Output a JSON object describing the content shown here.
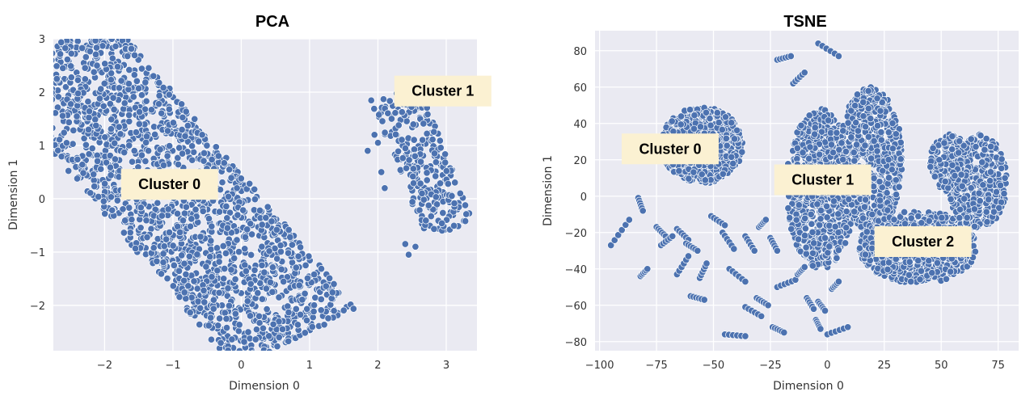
{
  "chart_data": [
    {
      "type": "scatter",
      "title": "PCA",
      "xlabel": "Dimension 0",
      "ylabel": "Dimension 1",
      "xlim": [
        -2.75,
        3.45
      ],
      "ylim": [
        -2.85,
        3.0
      ],
      "xticks": [
        -2,
        -1,
        0,
        1,
        2,
        3
      ],
      "yticks": [
        -2,
        -1,
        0,
        1,
        2,
        3
      ],
      "xtick_labels": [
        "−2",
        "−1",
        "0",
        "1",
        "2",
        "3"
      ],
      "ytick_labels": [
        "−2",
        "−1",
        "0",
        "1",
        "2",
        "3"
      ],
      "grid": true,
      "point_color": "#4C72B0",
      "background": "#EAEAF2",
      "annotations": [
        {
          "text": "Cluster 0",
          "x": -1.05,
          "y": 0.27
        },
        {
          "text": "Cluster 1",
          "x": 2.95,
          "y": 2.02
        }
      ],
      "clusters": [
        {
          "shape": "band",
          "center": [
            -1.0,
            0.1
          ],
          "u": [
            0.55,
            -0.83
          ],
          "half_u": 3.3,
          "half_v": 1.05,
          "n": 1900
        },
        {
          "shape": "band",
          "center": [
            2.65,
            0.7
          ],
          "u": [
            0.3,
            -0.95
          ],
          "half_u": 1.35,
          "half_v": 0.38,
          "n": 260
        }
      ],
      "points": [
        [
          1.85,
          0.9
        ],
        [
          1.95,
          1.2
        ],
        [
          2.05,
          0.5
        ],
        [
          2.1,
          0.2
        ],
        [
          2.2,
          1.5
        ],
        [
          2.4,
          -0.85
        ],
        [
          2.45,
          -1.05
        ],
        [
          2.55,
          -0.9
        ],
        [
          2.0,
          1.05
        ],
        [
          2.3,
          1.8
        ]
      ]
    },
    {
      "type": "scatter",
      "title": "TSNE",
      "xlabel": "Dimension 0",
      "ylabel": "Dimension 1",
      "xlim": [
        -102,
        84
      ],
      "ylim": [
        -85,
        91
      ],
      "xticks": [
        -100,
        -75,
        -50,
        -25,
        0,
        25,
        50,
        75
      ],
      "yticks": [
        -80,
        -60,
        -40,
        -20,
        0,
        20,
        40,
        60,
        80
      ],
      "xtick_labels": [
        "−100",
        "−75",
        "−50",
        "−25",
        "0",
        "25",
        "50",
        "75"
      ],
      "ytick_labels": [
        "−80",
        "−60",
        "−40",
        "−20",
        "0",
        "20",
        "40",
        "60",
        "80"
      ],
      "grid": true,
      "point_color": "#4C72B0",
      "background": "#EAEAF2",
      "annotations": [
        {
          "text": "Cluster 0",
          "x": -69,
          "y": 26
        },
        {
          "text": "Cluster 1",
          "x": -2,
          "y": 9
        },
        {
          "text": "Cluster 2",
          "x": 42,
          "y": -25
        }
      ],
      "clusters": [
        {
          "shape": "ellipse",
          "center": [
            -55,
            28
          ],
          "rx": 18,
          "ry": 21,
          "n": 700
        },
        {
          "shape": "ellipse",
          "center": [
            -3,
            4
          ],
          "rx": 15,
          "ry": 44,
          "n": 750
        },
        {
          "shape": "ellipse",
          "center": [
            19,
            20
          ],
          "rx": 14,
          "ry": 40,
          "n": 650
        },
        {
          "shape": "ellipse",
          "center": [
            40,
            -28
          ],
          "rx": 26,
          "ry": 20,
          "n": 650
        },
        {
          "shape": "ellipse",
          "center": [
            66,
            8
          ],
          "rx": 13,
          "ry": 26,
          "n": 380
        },
        {
          "shape": "ellipse",
          "center": [
            54,
            18
          ],
          "rx": 9,
          "ry": 16,
          "n": 200
        }
      ],
      "segments": [
        [
          [
            -95,
            -27
          ],
          [
            -87,
            -13
          ]
        ],
        [
          [
            -83,
            -1
          ],
          [
            -81,
            -8
          ]
        ],
        [
          [
            -75,
            -17
          ],
          [
            -71,
            -22
          ]
        ],
        [
          [
            -66,
            -18
          ],
          [
            -61,
            -24
          ]
        ],
        [
          [
            -62,
            -26
          ],
          [
            -57,
            -30
          ]
        ],
        [
          [
            -66,
            -43
          ],
          [
            -61,
            -33
          ]
        ],
        [
          [
            -56,
            -45
          ],
          [
            -53,
            -37
          ]
        ],
        [
          [
            -51,
            -11
          ],
          [
            -45,
            -16
          ]
        ],
        [
          [
            -46,
            -20
          ],
          [
            -41,
            -29
          ]
        ],
        [
          [
            -43,
            -40
          ],
          [
            -36,
            -47
          ]
        ],
        [
          [
            -36,
            -22
          ],
          [
            -32,
            -30
          ]
        ],
        [
          [
            -30,
            -17
          ],
          [
            -27,
            -13
          ]
        ],
        [
          [
            -25,
            -23
          ],
          [
            -22,
            -30
          ]
        ],
        [
          [
            -36,
            -61
          ],
          [
            -29,
            -66
          ]
        ],
        [
          [
            -31,
            -56
          ],
          [
            -26,
            -60
          ]
        ],
        [
          [
            -45,
            -76
          ],
          [
            -36,
            -77
          ]
        ],
        [
          [
            -24,
            -72
          ],
          [
            -19,
            -75
          ]
        ],
        [
          [
            -22,
            -50
          ],
          [
            -14,
            -46
          ]
        ],
        [
          [
            -13,
            -43
          ],
          [
            -10,
            -39
          ]
        ],
        [
          [
            -9,
            -56
          ],
          [
            -6,
            -62
          ]
        ],
        [
          [
            -5,
            -68
          ],
          [
            -3,
            -73
          ]
        ],
        [
          [
            0,
            -76
          ],
          [
            9,
            -72
          ]
        ],
        [
          [
            2,
            -51
          ],
          [
            5,
            -47
          ]
        ],
        [
          [
            -4,
            -58
          ],
          [
            -1,
            -63
          ]
        ],
        [
          [
            -22,
            75
          ],
          [
            -16,
            77
          ]
        ],
        [
          [
            -15,
            62
          ],
          [
            -10,
            68
          ]
        ],
        [
          [
            -4,
            84
          ],
          [
            5,
            77
          ]
        ],
        [
          [
            -82,
            -44
          ],
          [
            -79,
            -40
          ]
        ],
        [
          [
            -60,
            -55
          ],
          [
            -54,
            -57
          ]
        ],
        [
          [
            -73,
            -27
          ],
          [
            -68,
            -22
          ]
        ]
      ]
    }
  ]
}
